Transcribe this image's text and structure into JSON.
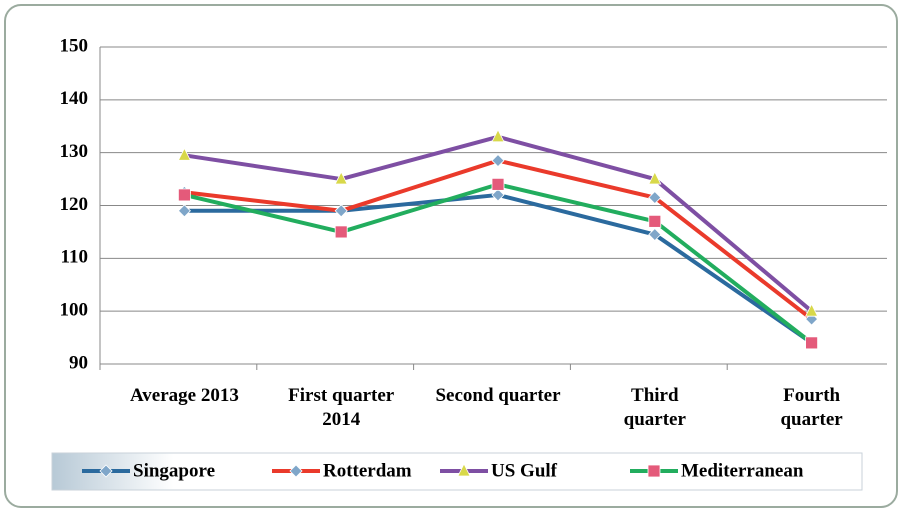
{
  "chart_data": {
    "type": "line",
    "categories": [
      "Average 2013",
      "First quarter 2014",
      "Second quarter",
      "Third quarter",
      "Fourth quarter"
    ],
    "series": [
      {
        "name": "Singapore",
        "color": "#2b6a9e",
        "marker": "diamond",
        "values": [
          119,
          119,
          122,
          114.5,
          94
        ]
      },
      {
        "name": "Rotterdam",
        "color": "#ea3a2b",
        "marker": "diamond",
        "values": [
          122.5,
          119,
          128.5,
          121.5,
          98.5
        ]
      },
      {
        "name": "US Gulf",
        "color": "#7e4fa3",
        "marker": "triangle",
        "values": [
          129.5,
          125,
          133,
          125,
          100
        ]
      },
      {
        "name": "Mediterranean",
        "color": "#22ad5e",
        "marker": "square",
        "values": [
          122,
          115,
          124,
          117,
          94
        ]
      }
    ],
    "ylim": [
      90,
      150
    ],
    "yticks": [
      90,
      100,
      110,
      120,
      130,
      140,
      150
    ],
    "grid": true,
    "legend": "bottom"
  }
}
